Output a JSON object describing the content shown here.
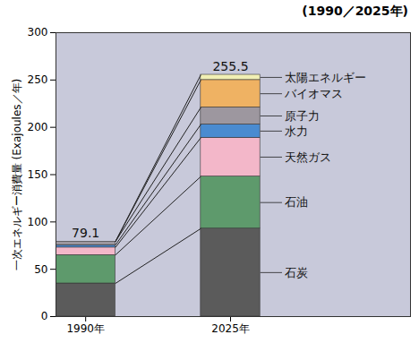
{
  "chart_data": {
    "type": "bar",
    "stacked": true,
    "title": "(1990／2025年)",
    "y_label": "一次エネルギー消費量 (Exajoules／年)",
    "categories": [
      "1990年",
      "2025年"
    ],
    "series": [
      {
        "name": "石炭",
        "color": "#5b5b5b",
        "values": [
          35,
          93
        ]
      },
      {
        "name": "石油",
        "color": "#5e9a6c",
        "values": [
          30,
          55
        ]
      },
      {
        "name": "天然ガス",
        "color": "#f3b7c9",
        "values": [
          8,
          41
        ]
      },
      {
        "name": "水力",
        "color": "#4a8bd0",
        "values": [
          2.5,
          14
        ]
      },
      {
        "name": "原子力",
        "color": "#9d979f",
        "values": [
          3.6,
          18
        ]
      },
      {
        "name": "バイオマス",
        "color": "#efb263",
        "values": [
          0,
          29
        ]
      },
      {
        "name": "太陽エネルギー",
        "color": "#f1efb4",
        "values": [
          0,
          5.5
        ]
      }
    ],
    "totals": [
      79.1,
      255.5
    ],
    "ylim": [
      0,
      300
    ],
    "yticks": [
      0,
      50,
      100,
      150,
      200,
      250,
      300
    ]
  }
}
